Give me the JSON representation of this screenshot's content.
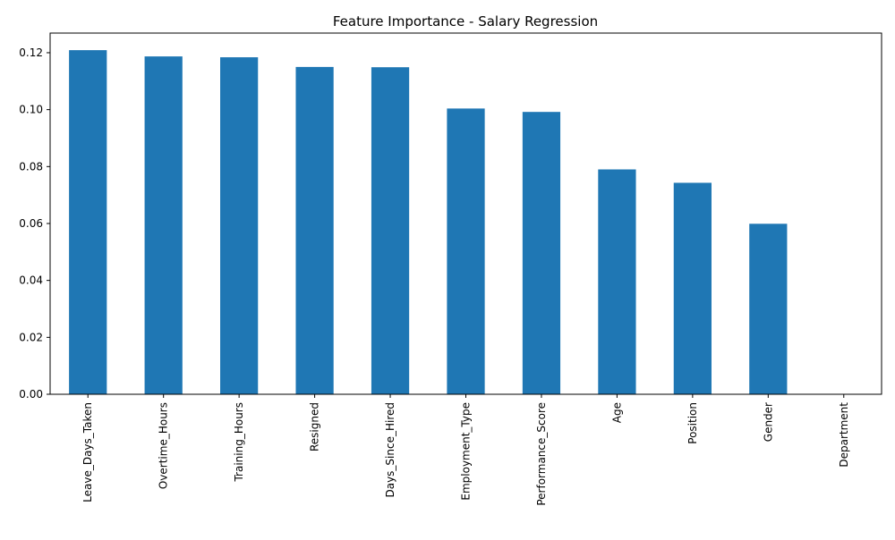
{
  "chart_data": {
    "type": "bar",
    "title": "Feature Importance - Salary Regression",
    "xlabel": "",
    "ylabel": "",
    "categories": [
      "Leave_Days_Taken",
      "Overtime_Hours",
      "Training_Hours",
      "Resigned",
      "Days_Since_Hired",
      "Employment_Type",
      "Performance_Score",
      "Age",
      "Position",
      "Gender",
      "Department"
    ],
    "values": [
      0.1209,
      0.1187,
      0.1184,
      0.115,
      0.1149,
      0.1004,
      0.0992,
      0.079,
      0.0743,
      0.0599,
      0.0
    ],
    "ylim": [
      0,
      0.1269
    ],
    "yticks": [
      "0.00",
      "0.02",
      "0.04",
      "0.06",
      "0.08",
      "0.10",
      "0.12"
    ],
    "ytick_values": [
      0,
      0.02,
      0.04,
      0.06,
      0.08,
      0.1,
      0.12
    ],
    "bar_color": "#1f77b4",
    "grid": false,
    "legend": "none"
  }
}
